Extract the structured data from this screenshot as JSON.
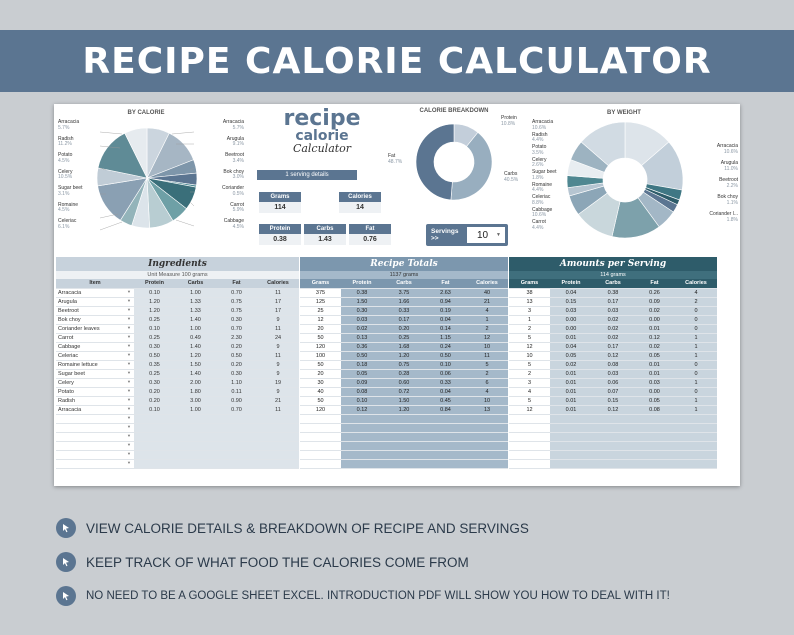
{
  "banner": {
    "title": "RECIPE CALORIE CALCULATOR"
  },
  "logo": {
    "line1": "recipe",
    "line2": "calorie",
    "line3": "Calculator"
  },
  "charts": {
    "by_calorie": {
      "title": "BY CALORIE",
      "labels_left": [
        {
          "name": "Arracacia",
          "pct": "5.7%"
        },
        {
          "name": "Radish",
          "pct": "11.2%"
        },
        {
          "name": "Potato",
          "pct": "4.5%"
        },
        {
          "name": "Celery",
          "pct": "10.5%"
        },
        {
          "name": "Sugar beet",
          "pct": "3.1%"
        },
        {
          "name": "Romaine",
          "pct": "4.5%"
        },
        {
          "name": "Celeriac",
          "pct": "6.1%"
        }
      ],
      "labels_right": [
        {
          "name": "Arracacia",
          "pct": "5.7%"
        },
        {
          "name": "Arugula",
          "pct": "9.1%"
        },
        {
          "name": "Beetroot",
          "pct": "3.4%"
        },
        {
          "name": "Bok choy",
          "pct": "3.0%"
        },
        {
          "name": "Coriander",
          "pct": "0.5%"
        },
        {
          "name": "Carrot",
          "pct": "5.9%"
        },
        {
          "name": "Cabbage",
          "pct": "4.5%"
        }
      ]
    },
    "breakdown": {
      "title": "CALORIE BREAKDOWN",
      "protein": {
        "name": "Protein",
        "pct": "10.8%"
      },
      "fat": {
        "name": "Fat",
        "pct": "48.7%"
      },
      "carbs": {
        "name": "Carbs",
        "pct": "40.5%"
      }
    },
    "by_weight": {
      "title": "BY WEIGHT",
      "labels_left": [
        {
          "name": "Arracacia",
          "pct": "10.6%"
        },
        {
          "name": "Radish",
          "pct": "4.4%"
        },
        {
          "name": "Potato",
          "pct": "3.5%"
        },
        {
          "name": "Celery",
          "pct": "2.6%"
        },
        {
          "name": "Sugar beet",
          "pct": "1.8%"
        },
        {
          "name": "Romaine",
          "pct": "4.4%"
        },
        {
          "name": "Celeriac",
          "pct": "8.8%"
        },
        {
          "name": "Cabbage",
          "pct": "10.6%"
        },
        {
          "name": "Carrot",
          "pct": "4.4%"
        }
      ],
      "labels_right": [
        {
          "name": "Arracacia",
          "pct": "10.6%"
        },
        {
          "name": "Arugula",
          "pct": "11.0%"
        },
        {
          "name": "Beetroot",
          "pct": "2.2%"
        },
        {
          "name": "Bok choy",
          "pct": "1.1%"
        },
        {
          "name": "Coriander l...",
          "pct": "1.8%"
        }
      ]
    }
  },
  "serving_details": {
    "header": "1 serving details",
    "grams_label": "Grams",
    "grams_value": "114",
    "calories_label": "Calories",
    "calories_value": "14",
    "protein_label": "Protein",
    "protein_value": "0.38",
    "carbs_label": "Carbs",
    "carbs_value": "1.43",
    "fat_label": "Fat",
    "fat_value": "0.76"
  },
  "servings": {
    "label": "Servings >>",
    "value": "10"
  },
  "ingredients": {
    "title": "Ingredients",
    "subtitle": "Unit Measure 100 grams",
    "columns": [
      "Item",
      "Protein",
      "Carbs",
      "Fat",
      "Calories"
    ],
    "rows": [
      [
        "Arracacia",
        "0.10",
        "1.00",
        "0.70",
        "11"
      ],
      [
        "Arugula",
        "1.20",
        "1.33",
        "0.75",
        "17"
      ],
      [
        "Beetroot",
        "1.20",
        "1.33",
        "0.75",
        "17"
      ],
      [
        "Bok choy",
        "0.25",
        "1.40",
        "0.30",
        "9"
      ],
      [
        "Coriander leaves",
        "0.10",
        "1.00",
        "0.70",
        "11"
      ],
      [
        "Carrot",
        "0.25",
        "0.49",
        "2.30",
        "24"
      ],
      [
        "Cabbage",
        "0.30",
        "1.40",
        "0.20",
        "9"
      ],
      [
        "Celeriac",
        "0.50",
        "1.20",
        "0.50",
        "11"
      ],
      [
        "Romaine lettuce",
        "0.35",
        "1.50",
        "0.20",
        "9"
      ],
      [
        "Sugar beet",
        "0.25",
        "1.40",
        "0.30",
        "9"
      ],
      [
        "Celery",
        "0.30",
        "2.00",
        "1.10",
        "19"
      ],
      [
        "Potato",
        "0.20",
        "1.80",
        "0.11",
        "9"
      ],
      [
        "Radish",
        "0.20",
        "3.00",
        "0.90",
        "21"
      ],
      [
        "Arracacia",
        "0.10",
        "1.00",
        "0.70",
        "11"
      ]
    ],
    "empty_rows": 6
  },
  "recipe_totals": {
    "title": "Recipe Totals",
    "subtitle": "1137 grams",
    "columns": [
      "Grams",
      "Protein",
      "Carbs",
      "Fat",
      "Calories"
    ],
    "rows": [
      [
        "375",
        "0.38",
        "3.75",
        "2.63",
        "40"
      ],
      [
        "125",
        "1.50",
        "1.66",
        "0.94",
        "21"
      ],
      [
        "25",
        "0.30",
        "0.33",
        "0.19",
        "4"
      ],
      [
        "12",
        "0.03",
        "0.17",
        "0.04",
        "1"
      ],
      [
        "20",
        "0.02",
        "0.20",
        "0.14",
        "2"
      ],
      [
        "50",
        "0.13",
        "0.25",
        "1.15",
        "12"
      ],
      [
        "120",
        "0.36",
        "1.68",
        "0.24",
        "10"
      ],
      [
        "100",
        "0.50",
        "1.20",
        "0.50",
        "11"
      ],
      [
        "50",
        "0.18",
        "0.75",
        "0.10",
        "5"
      ],
      [
        "20",
        "0.05",
        "0.28",
        "0.06",
        "2"
      ],
      [
        "30",
        "0.09",
        "0.60",
        "0.33",
        "6"
      ],
      [
        "40",
        "0.08",
        "0.72",
        "0.04",
        "4"
      ],
      [
        "50",
        "0.10",
        "1.50",
        "0.45",
        "10"
      ],
      [
        "120",
        "0.12",
        "1.20",
        "0.84",
        "13"
      ]
    ]
  },
  "amounts_per_serving": {
    "title": "Amounts per Serving",
    "subtitle": "114 grams",
    "columns": [
      "Grams",
      "Protein",
      "Carbs",
      "Fat",
      "Calories"
    ],
    "rows": [
      [
        "38",
        "0.04",
        "0.38",
        "0.26",
        "4"
      ],
      [
        "13",
        "0.15",
        "0.17",
        "0.09",
        "2"
      ],
      [
        "3",
        "0.03",
        "0.03",
        "0.02",
        "0"
      ],
      [
        "1",
        "0.00",
        "0.02",
        "0.00",
        "0"
      ],
      [
        "2",
        "0.00",
        "0.02",
        "0.01",
        "0"
      ],
      [
        "5",
        "0.01",
        "0.02",
        "0.12",
        "1"
      ],
      [
        "12",
        "0.04",
        "0.17",
        "0.02",
        "1"
      ],
      [
        "10",
        "0.05",
        "0.12",
        "0.05",
        "1"
      ],
      [
        "5",
        "0.02",
        "0.08",
        "0.01",
        "0"
      ],
      [
        "2",
        "0.01",
        "0.03",
        "0.01",
        "0"
      ],
      [
        "3",
        "0.01",
        "0.06",
        "0.03",
        "1"
      ],
      [
        "4",
        "0.01",
        "0.07",
        "0.00",
        "0"
      ],
      [
        "5",
        "0.01",
        "0.15",
        "0.05",
        "1"
      ],
      [
        "12",
        "0.01",
        "0.12",
        "0.08",
        "1"
      ]
    ]
  },
  "bullets": [
    "VIEW CALORIE DETAILS & BREAKDOWN OF RECIPE AND SERVINGS",
    "KEEP TRACK OF WHAT FOOD THE CALORIES COME FROM",
    "NO NEED TO BE A GOOGLE SHEET EXCEL. INTRODUCTION PDF WILL SHOW YOU HOW TO DEAL WITH IT!"
  ],
  "colors": {
    "banner": "#5b7591",
    "teal_dark": "#2e5c6a",
    "slate": "#7c97ae",
    "background": "#c9cdd1"
  }
}
